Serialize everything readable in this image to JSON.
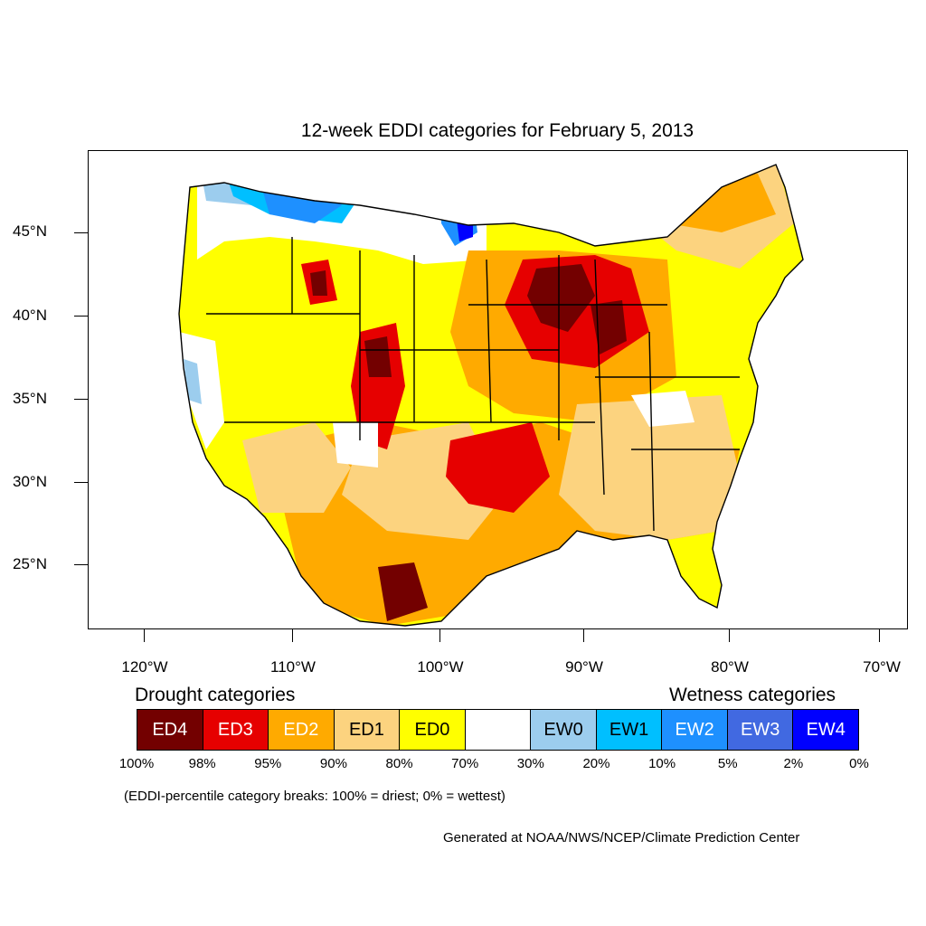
{
  "title": "12-week EDDI categories for February 5, 2013",
  "lat_labels": [
    "45°N",
    "40°N",
    "35°N",
    "30°N",
    "25°N"
  ],
  "lon_labels": [
    "120°W",
    "110°W",
    "100°W",
    "90°W",
    "80°W",
    "70°W"
  ],
  "legend": {
    "drought_heading": "Drought categories",
    "wetness_heading": "Wetness categories",
    "categories": [
      {
        "label": "ED4",
        "color": "#730000",
        "text_color": "#ffffff"
      },
      {
        "label": "ED3",
        "color": "#e60000",
        "text_color": "#ffffff"
      },
      {
        "label": "ED2",
        "color": "#ffaa00",
        "text_color": "#ffffff"
      },
      {
        "label": "ED1",
        "color": "#fcd37f",
        "text_color": "#000000"
      },
      {
        "label": "ED0",
        "color": "#ffff00",
        "text_color": "#000000"
      },
      {
        "label": "",
        "color": "#ffffff",
        "text_color": "#000000"
      },
      {
        "label": "EW0",
        "color": "#9ccdee",
        "text_color": "#000000"
      },
      {
        "label": "EW1",
        "color": "#00bfff",
        "text_color": "#000000"
      },
      {
        "label": "EW2",
        "color": "#1e90ff",
        "text_color": "#ffffff"
      },
      {
        "label": "EW3",
        "color": "#4169e1",
        "text_color": "#ffffff"
      },
      {
        "label": "EW4",
        "color": "#0000ff",
        "text_color": "#ffffff"
      }
    ],
    "percentiles": [
      "100%",
      "98%",
      "95%",
      "90%",
      "80%",
      "70%",
      "30%",
      "20%",
      "10%",
      "5%",
      "2%",
      "0%"
    ]
  },
  "note": "(EDDI-percentile category breaks: 100% = driest; 0% = wettest)",
  "credit": "Generated at NOAA/NWS/NCEP/Climate Prediction Center"
}
